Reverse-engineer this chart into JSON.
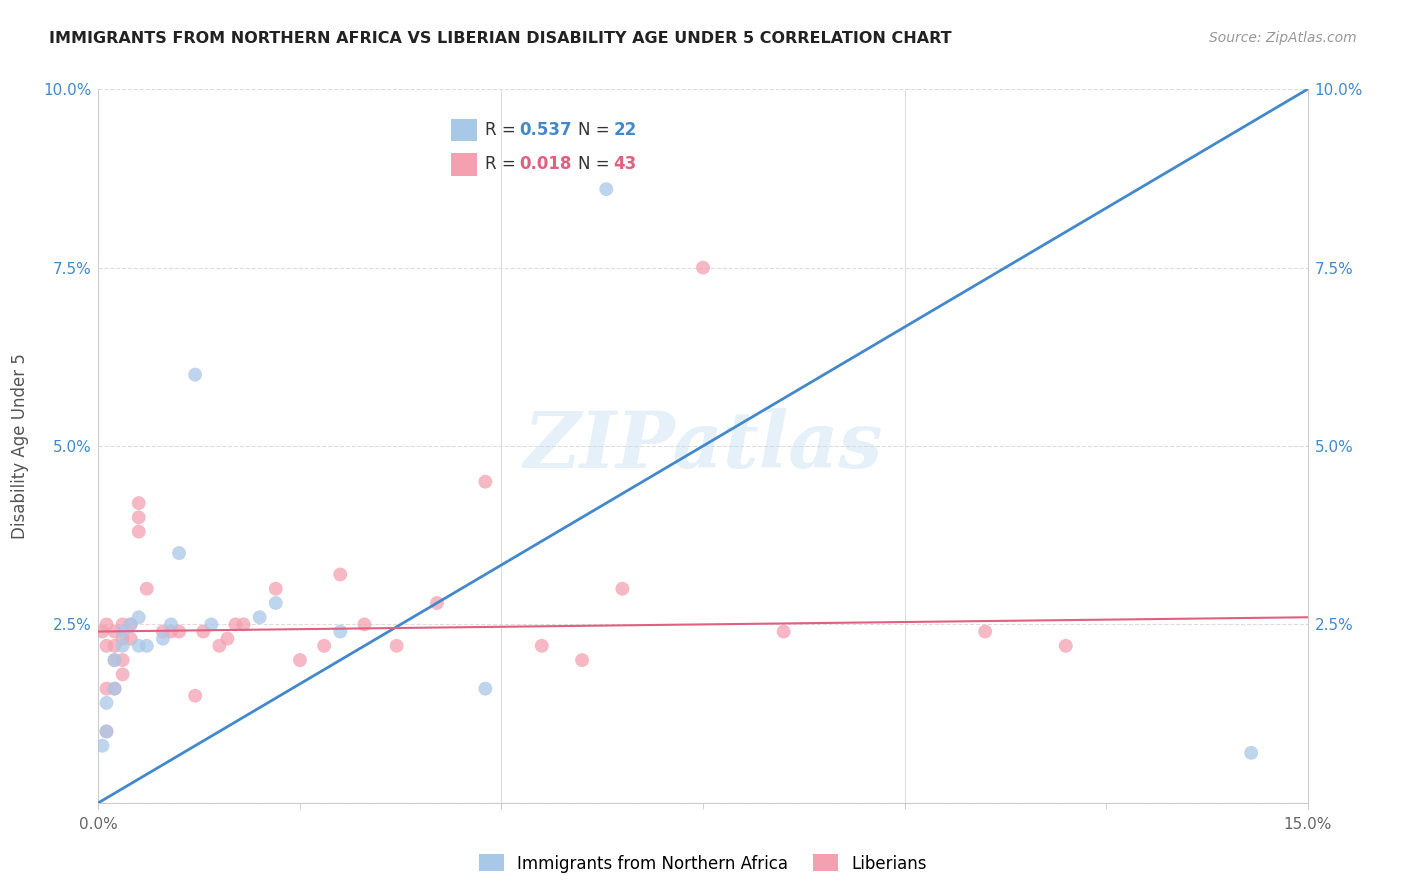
{
  "title": "IMMIGRANTS FROM NORTHERN AFRICA VS LIBERIAN DISABILITY AGE UNDER 5 CORRELATION CHART",
  "source": "Source: ZipAtlas.com",
  "ylabel": "Disability Age Under 5",
  "xlim": [
    0.0,
    0.15
  ],
  "ylim": [
    0.0,
    0.1
  ],
  "blue_R": 0.537,
  "blue_N": 22,
  "pink_R": 0.018,
  "pink_N": 43,
  "blue_color": "#a8c8e8",
  "pink_color": "#f4a0b0",
  "blue_line_color": "#4488cc",
  "pink_line_color": "#e06080",
  "blue_x": [
    0.0005,
    0.001,
    0.001,
    0.002,
    0.002,
    0.003,
    0.003,
    0.004,
    0.005,
    0.005,
    0.006,
    0.008,
    0.009,
    0.01,
    0.012,
    0.014,
    0.02,
    0.022,
    0.03,
    0.048,
    0.063,
    0.143
  ],
  "blue_y": [
    0.008,
    0.01,
    0.014,
    0.016,
    0.02,
    0.022,
    0.024,
    0.025,
    0.022,
    0.026,
    0.022,
    0.023,
    0.025,
    0.035,
    0.06,
    0.025,
    0.026,
    0.028,
    0.024,
    0.016,
    0.086,
    0.007
  ],
  "pink_x": [
    0.0005,
    0.001,
    0.001,
    0.001,
    0.001,
    0.002,
    0.002,
    0.002,
    0.002,
    0.003,
    0.003,
    0.003,
    0.003,
    0.004,
    0.004,
    0.005,
    0.005,
    0.005,
    0.006,
    0.008,
    0.009,
    0.01,
    0.012,
    0.013,
    0.015,
    0.016,
    0.017,
    0.018,
    0.022,
    0.025,
    0.028,
    0.03,
    0.033,
    0.037,
    0.042,
    0.048,
    0.055,
    0.06,
    0.065,
    0.075,
    0.085,
    0.11,
    0.12
  ],
  "pink_y": [
    0.024,
    0.01,
    0.016,
    0.022,
    0.025,
    0.016,
    0.02,
    0.022,
    0.024,
    0.018,
    0.02,
    0.023,
    0.025,
    0.023,
    0.025,
    0.038,
    0.04,
    0.042,
    0.03,
    0.024,
    0.024,
    0.024,
    0.015,
    0.024,
    0.022,
    0.023,
    0.025,
    0.025,
    0.03,
    0.02,
    0.022,
    0.032,
    0.025,
    0.022,
    0.028,
    0.045,
    0.022,
    0.02,
    0.03,
    0.075,
    0.024,
    0.024,
    0.022
  ],
  "blue_line_x": [
    0.0,
    0.15
  ],
  "blue_line_y": [
    0.0,
    0.1
  ],
  "pink_line_x": [
    0.0,
    0.15
  ],
  "pink_line_y": [
    0.024,
    0.026
  ],
  "watermark": "ZIPatlas",
  "background_color": "#ffffff",
  "grid_color": "#dddddd"
}
